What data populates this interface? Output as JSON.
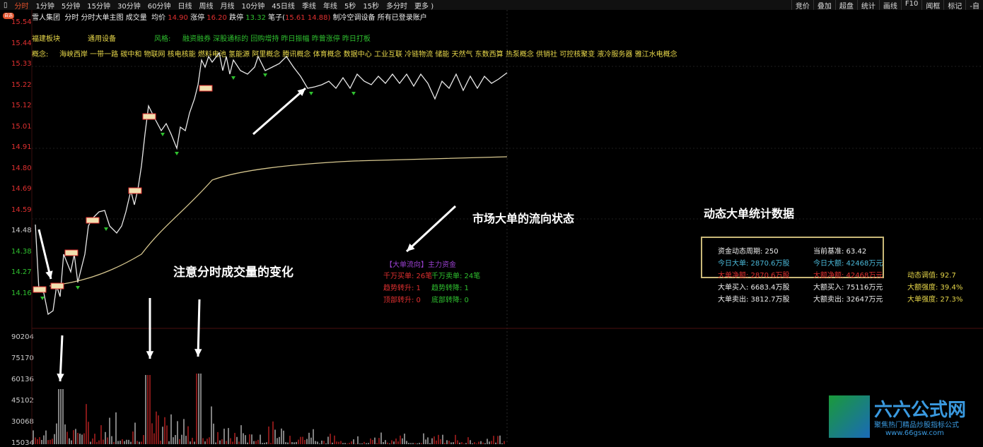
{
  "toolbar": {
    "periods": [
      "分时",
      "1分钟",
      "5分钟",
      "15分钟",
      "30分钟",
      "60分钟",
      "日线",
      "周线",
      "月线",
      "10分钟",
      "45日线",
      "季线",
      "年线",
      "5秒",
      "15秒",
      "多分时",
      "更多 )"
    ],
    "right": [
      "竞价",
      "叠加",
      "超盘",
      "统计",
      "画线",
      "F10",
      "闻框",
      "标记",
      "-自"
    ]
  },
  "header": {
    "badge": "自选",
    "stock": "雪人集团",
    "items": "分时 分时大单主图 成交量",
    "avg_label": "均价",
    "avg": "14.90",
    "limit_up_label": "涨停",
    "limit_up": "16.20",
    "limit_down_label": "跌停",
    "limit_down": "13.32",
    "pen_label": "笔子(",
    "pen": "15.61 14.88)",
    "tail": "制冷空调设备 所有已登录账户"
  },
  "sector": {
    "label": "福建板块",
    "industry": "通用设备",
    "style_label": "风格:",
    "styles": "融资融券 深股通标的 回购增持 昨日振幅 昨曾涨停 昨日打板"
  },
  "concepts": {
    "label": "概念:",
    "items": "海峡西岸 一带一路 碳中和 物联网 核电核能 燃料电池 氢能源 阿里概念 腾讯概念 体育概念 数据中心 工业互联 冷链物流 储能 天然气 东数西算 热泵概念 供销社 可控核聚变 液冷服务器 雅江水电概念"
  },
  "price_axis": [
    "15.54",
    "15.44",
    "15.33",
    "15.22",
    "15.12",
    "15.01",
    "14.91",
    "14.80",
    "14.69",
    "14.59",
    "14.48",
    "14.38",
    "14.27",
    "14.16"
  ],
  "volume_axis": [
    "90204",
    "75170",
    "60136",
    "45102",
    "30068",
    "15034"
  ],
  "signals": [
    "首量",
    "一路",
    "顶部转升",
    "买发",
    "趋势转降"
  ],
  "notes": {
    "volume": "注意分时成交量的变化",
    "flow": "市场大单的流向状态",
    "stats": "动态大单统计数据"
  },
  "flow": {
    "title": "【大单流向】主力资金",
    "buy": "千万买单: 26笔",
    "sell": "千万卖单: 24笔",
    "trend_up": "趋势转升: 1",
    "trend_down": "趋势转降: 1",
    "top_up": "顶部转升: 0",
    "bottom_down": "底部转降: 0"
  },
  "stats": {
    "period": "资金动态周期: 250",
    "base": "当前基准: 63.42",
    "today_big": "今日大单: 2870.6万股",
    "today_amt": "今日大额: 42468万元",
    "net_big": "大单净额: 2870.6万股",
    "net_amt": "大额净额: 42468万元",
    "dyn": "动态调值: 92.7",
    "buy_big": "大单买入: 6683.4万股",
    "buy_amt": "大额买入: 75116万元",
    "amt_ratio": "大额强度: 39.4%",
    "sell_big": "大单卖出: 3812.7万股",
    "sell_amt": "大额卖出: 32647万元",
    "big_ratio": "大单强度: 27.3%"
  },
  "logo": {
    "name": "六六公式网",
    "slogan": "聚焦热门精品炒股指标公式",
    "url": "www.66gsw.com"
  },
  "colors": {
    "up": "#e03030",
    "down": "#2fc02f",
    "price_line": "#e8e8e8",
    "avg_line": "#d8c890"
  }
}
